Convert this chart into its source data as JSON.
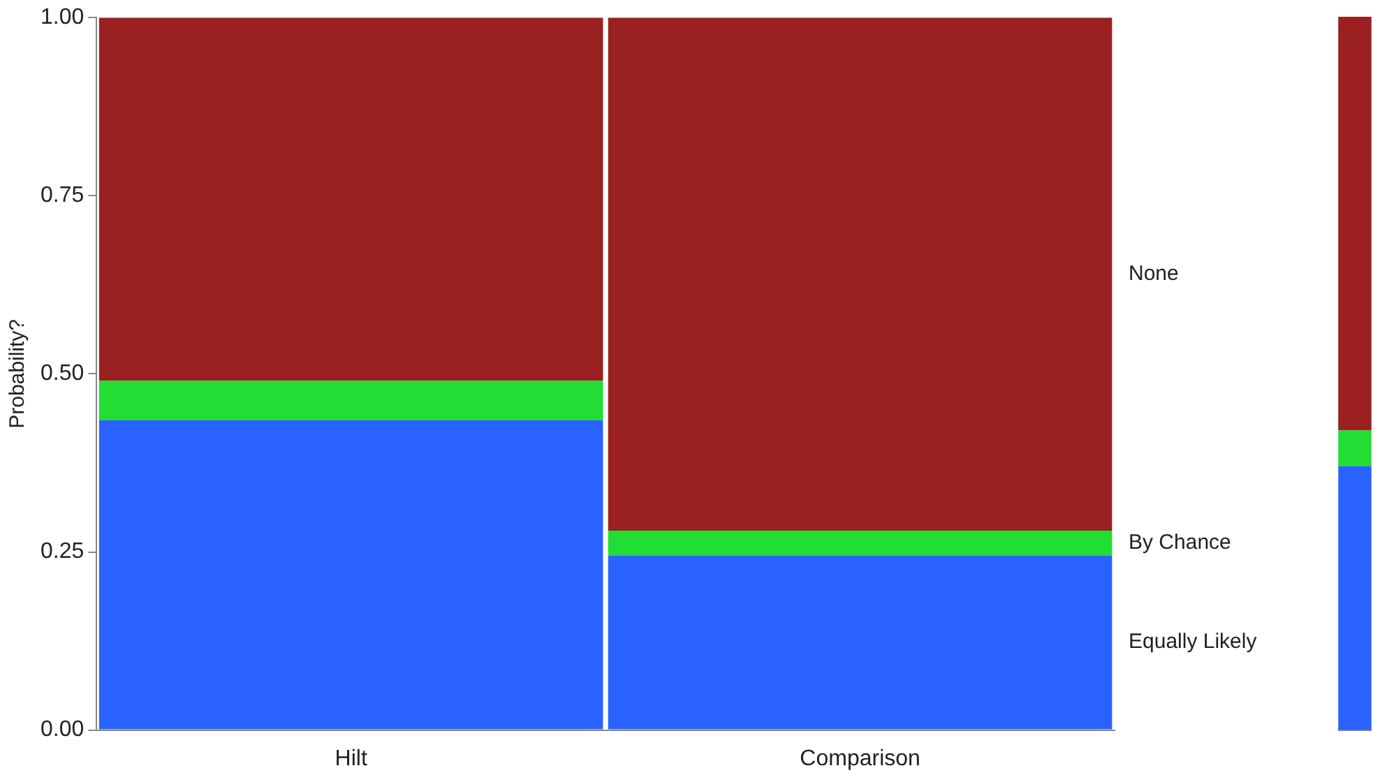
{
  "chart_data": [
    {
      "type": "bar",
      "stacked": true,
      "ylabel": "Probability?",
      "categories": [
        "Hilt",
        "Comparison"
      ],
      "ylim": [
        0,
        1
      ],
      "yticks": [
        {
          "value": 0,
          "label": "0.00"
        },
        {
          "value": 0.25,
          "label": "0.25"
        },
        {
          "value": 0.5,
          "label": "0.50"
        },
        {
          "value": 0.75,
          "label": "0.75"
        },
        {
          "value": 1,
          "label": "1.00"
        }
      ],
      "grid": false,
      "legend": false,
      "series": [
        {
          "name": "Equally Likely",
          "color": "#2962ff",
          "values": [
            0.435,
            0.245
          ]
        },
        {
          "name": "By Chance",
          "color": "#22dd33",
          "values": [
            0.055,
            0.035
          ]
        },
        {
          "name": "None",
          "color": "#9b2020",
          "values": [
            0.51,
            0.72
          ]
        }
      ]
    },
    {
      "type": "bar",
      "stacked": true,
      "categories": [
        null
      ],
      "ylim": [
        0,
        1
      ],
      "grid": false,
      "legend": false,
      "series": [
        {
          "color": "#2962ff",
          "values": [
            0.37
          ]
        },
        {
          "color": "#22dd33",
          "values": [
            0.05
          ]
        },
        {
          "color": "#9b2020",
          "values": [
            0.58
          ]
        }
      ]
    }
  ]
}
